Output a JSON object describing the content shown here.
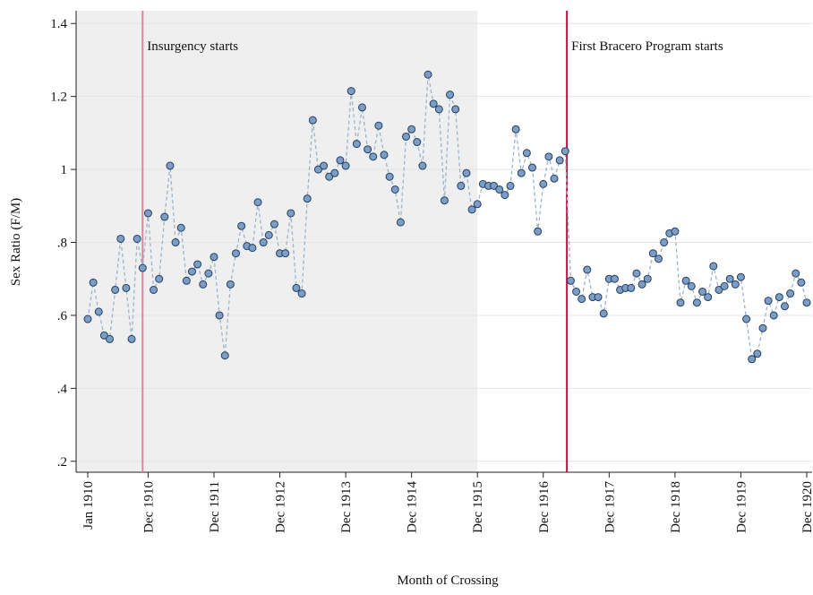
{
  "chart_data": {
    "type": "line",
    "x_label": "Month of Crossing",
    "y_label": "Sex Ratio (F/M)",
    "categories": [
      "Jan 1910",
      null,
      null,
      null,
      null,
      null,
      null,
      null,
      null,
      null,
      null,
      "Dec 1910",
      null,
      null,
      null,
      null,
      null,
      null,
      null,
      null,
      null,
      null,
      null,
      "Dec 1911",
      null,
      null,
      null,
      null,
      null,
      null,
      null,
      null,
      null,
      null,
      null,
      "Dec 1912",
      null,
      null,
      null,
      null,
      null,
      null,
      null,
      null,
      null,
      null,
      null,
      "Dec 1913",
      null,
      null,
      null,
      null,
      null,
      null,
      null,
      null,
      null,
      null,
      null,
      "Dec 1914",
      null,
      null,
      null,
      null,
      null,
      null,
      null,
      null,
      null,
      null,
      null,
      "Dec 1915",
      null,
      null,
      null,
      null,
      null,
      null,
      null,
      null,
      null,
      null,
      null,
      "Dec 1916",
      null,
      null,
      null,
      null,
      null,
      null,
      null,
      null,
      null,
      null,
      null,
      "Dec 1917",
      null,
      null,
      null,
      null,
      null,
      null,
      null,
      null,
      null,
      null,
      null,
      "Dec 1918",
      null,
      null,
      null,
      null,
      null,
      null,
      null,
      null,
      null,
      null,
      null,
      "Dec 1919",
      null,
      null,
      null,
      null,
      null,
      null,
      null,
      null,
      null,
      null,
      null,
      "Dec 1920"
    ],
    "series": [
      {
        "color": "#7d9dc2",
        "edge_color": "#203f68",
        "line_color": "#9fb3c8",
        "values": [
          0.59,
          0.69,
          0.61,
          0.545,
          0.535,
          0.67,
          0.81,
          0.675,
          0.535,
          0.81,
          0.73,
          0.88,
          0.67,
          0.7,
          0.87,
          1.01,
          0.8,
          0.84,
          0.695,
          0.72,
          0.74,
          0.685,
          0.715,
          0.76,
          0.6,
          0.49,
          0.685,
          0.77,
          0.845,
          0.79,
          0.785,
          0.91,
          0.8,
          0.82,
          0.85,
          0.77,
          0.77,
          0.88,
          0.675,
          0.66,
          0.92,
          1.135,
          1.0,
          1.01,
          0.98,
          0.99,
          1.025,
          1.01,
          1.215,
          1.07,
          1.17,
          1.055,
          1.035,
          1.12,
          1.04,
          0.98,
          0.945,
          0.855,
          1.09,
          1.11,
          1.075,
          1.01,
          1.26,
          1.18,
          1.165,
          0.915,
          1.205,
          1.165,
          0.955,
          0.99,
          0.89,
          0.905,
          0.96,
          0.955,
          0.955,
          0.945,
          0.93,
          0.955,
          1.11,
          0.99,
          1.045,
          1.005,
          0.83,
          0.96,
          1.035,
          0.975,
          1.025,
          1.05,
          0.695,
          0.665,
          0.645,
          0.725,
          0.65,
          0.65,
          0.605,
          0.7,
          0.7,
          0.67,
          0.675,
          0.675,
          0.715,
          0.685,
          0.7,
          0.77,
          0.755,
          0.8,
          0.825,
          0.83,
          0.635,
          0.695,
          0.68,
          0.635,
          0.665,
          0.65,
          0.735,
          0.67,
          0.68,
          0.7,
          0.685,
          0.705,
          0.59,
          0.48,
          0.495,
          0.565,
          0.64,
          0.6,
          0.65,
          0.625,
          0.66,
          0.715,
          0.69,
          0.635
        ]
      }
    ],
    "ylim": [
      0.17,
      1.435
    ],
    "yticks": [
      {
        "value": 0.2,
        "label": ".2"
      },
      {
        "value": 0.4,
        "label": ".4"
      },
      {
        "value": 0.6,
        "label": ".6"
      },
      {
        "value": 0.8,
        "label": ".8"
      },
      1,
      1.2,
      1.4
    ],
    "grid": true,
    "shade_until": 71,
    "shade_color": "#efefef",
    "annotations": [
      {
        "text": "Insurgency starts",
        "x": 10,
        "color": "#e0829c"
      },
      {
        "text": "First Bracero Program starts",
        "x": 87.3,
        "color": "#c41040"
      }
    ]
  }
}
